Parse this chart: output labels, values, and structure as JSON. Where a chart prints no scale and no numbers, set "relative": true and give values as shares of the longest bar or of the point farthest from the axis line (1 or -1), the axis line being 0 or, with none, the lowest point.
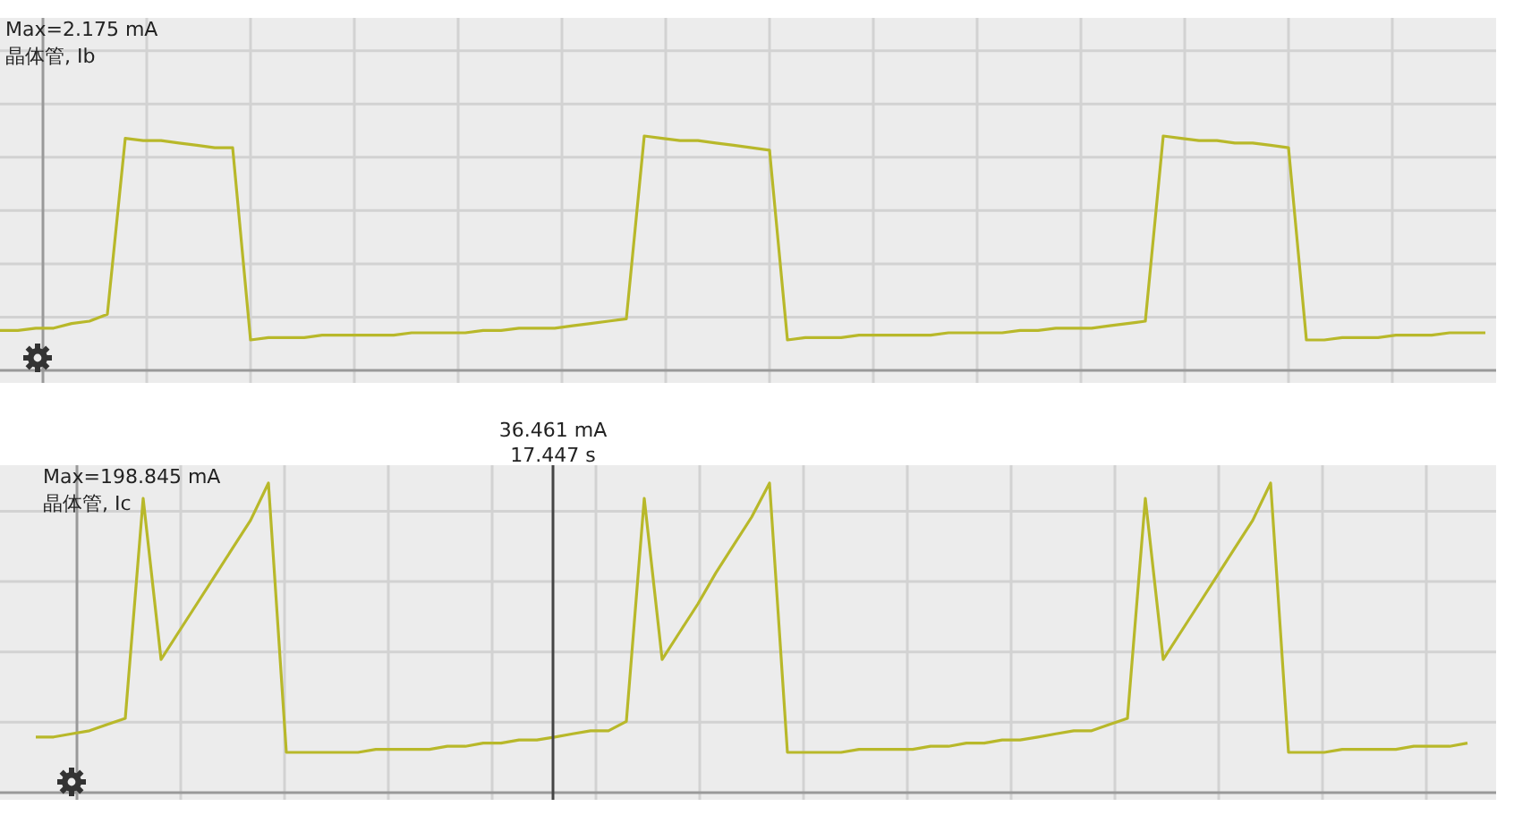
{
  "chart_data": [
    {
      "type": "line",
      "relative": true,
      "grid": true,
      "annotations": [
        "Max=2.175 mA",
        "晶体管, Ib"
      ],
      "categories": [
        null,
        null,
        null,
        null,
        null,
        null,
        null,
        null,
        null,
        null,
        null,
        null,
        null,
        null,
        null,
        null,
        null,
        null,
        null,
        null,
        null,
        null,
        null,
        null,
        null,
        null,
        null,
        null,
        null,
        null,
        null,
        null,
        null,
        null,
        null,
        null,
        null,
        null,
        null,
        null,
        null,
        null,
        null,
        null,
        null,
        null,
        null,
        null,
        null,
        null,
        null,
        null,
        null,
        null,
        null,
        null,
        null,
        null,
        null,
        null,
        null,
        null,
        null,
        null,
        null,
        null,
        null,
        null,
        null,
        null,
        null,
        null,
        null,
        null,
        null,
        null,
        null,
        null,
        null,
        null,
        null,
        null,
        null,
        null
      ],
      "series": [
        {
          "color": "#b8b82a",
          "values": [
            0.17,
            0.17,
            0.18,
            0.18,
            0.2,
            0.21,
            0.24,
            0.99,
            0.98,
            0.98,
            0.97,
            0.96,
            0.95,
            0.95,
            0.13,
            0.14,
            0.14,
            0.14,
            0.15,
            0.15,
            0.15,
            0.15,
            0.15,
            0.16,
            0.16,
            0.16,
            0.16,
            0.17,
            0.17,
            0.18,
            0.18,
            0.18,
            0.19,
            0.2,
            0.21,
            0.22,
            1.0,
            0.99,
            0.98,
            0.98,
            0.97,
            0.96,
            0.95,
            0.94,
            0.13,
            0.14,
            0.14,
            0.14,
            0.15,
            0.15,
            0.15,
            0.15,
            0.15,
            0.16,
            0.16,
            0.16,
            0.16,
            0.17,
            0.17,
            0.18,
            0.18,
            0.18,
            0.19,
            0.2,
            0.21,
            1.0,
            0.99,
            0.98,
            0.98,
            0.97,
            0.97,
            0.96,
            0.95,
            0.13,
            0.13,
            0.14,
            0.14,
            0.14,
            0.15,
            0.15,
            0.15,
            0.16,
            0.16,
            0.16
          ]
        }
      ]
    },
    {
      "type": "line",
      "relative": true,
      "grid": true,
      "annotations": [
        "Max=198.845 mA",
        "晶体管, Ic",
        "36.461 mA",
        "17.447 s"
      ],
      "categories": [
        null,
        null,
        null,
        null,
        null,
        null,
        null,
        null,
        null,
        null,
        null,
        null,
        null,
        null,
        null,
        null,
        null,
        null,
        null,
        null,
        null,
        null,
        null,
        null,
        null,
        null,
        null,
        null,
        null,
        null,
        null,
        null,
        null,
        null,
        null,
        null,
        null,
        null,
        null,
        null,
        null,
        null,
        null,
        null,
        null,
        null,
        null,
        null,
        null,
        null,
        null,
        null,
        null,
        null,
        null,
        null,
        null,
        null,
        null,
        null,
        null,
        null,
        null,
        null,
        null,
        null,
        null,
        null,
        null,
        null,
        null,
        null,
        null,
        null,
        null,
        null,
        null,
        null,
        null,
        null,
        null
      ],
      "series": [
        {
          "color": "#b8b82a",
          "values": [
            0.18,
            0.18,
            0.19,
            0.2,
            0.22,
            0.24,
            0.95,
            0.43,
            0.52,
            0.61,
            0.7,
            0.79,
            0.88,
            1.0,
            0.13,
            0.13,
            0.13,
            0.13,
            0.13,
            0.14,
            0.14,
            0.14,
            0.14,
            0.15,
            0.15,
            0.16,
            0.16,
            0.17,
            0.17,
            0.18,
            0.19,
            0.2,
            0.2,
            0.23,
            0.95,
            0.43,
            0.52,
            0.61,
            0.71,
            0.8,
            0.89,
            1.0,
            0.13,
            0.13,
            0.13,
            0.13,
            0.14,
            0.14,
            0.14,
            0.14,
            0.15,
            0.15,
            0.16,
            0.16,
            0.17,
            0.17,
            0.18,
            0.19,
            0.2,
            0.2,
            0.22,
            0.24,
            0.95,
            0.43,
            0.52,
            0.61,
            0.7,
            0.79,
            0.88,
            1.0,
            0.13,
            0.13,
            0.13,
            0.14,
            0.14,
            0.14,
            0.14,
            0.15,
            0.15,
            0.15,
            0.16
          ]
        }
      ]
    }
  ]
}
